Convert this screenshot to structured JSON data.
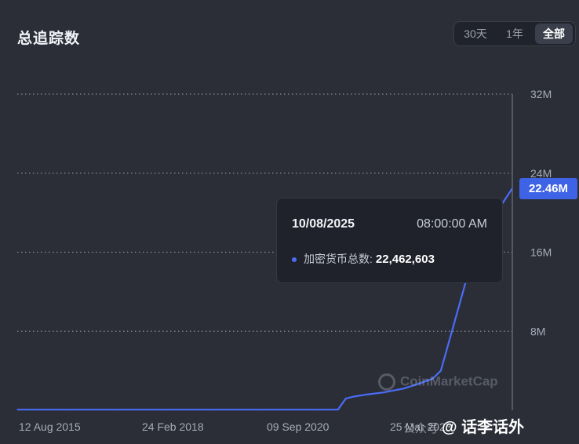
{
  "header": {
    "title": "总追踪数",
    "ranges": [
      "30天",
      "1年",
      "全部"
    ],
    "active_range": "全部"
  },
  "tooltip": {
    "date": "10/08/2025",
    "time": "08:00:00 AM",
    "series_label": "加密货币总数:",
    "value": "22,462,603"
  },
  "current_value_tag": "22.46M",
  "watermark": "CoinMarketCap",
  "credit": {
    "prefix": "公众号",
    "name": "@ 话李话外"
  },
  "colors": {
    "line": "#4a6cf7",
    "tag": "#3f63e6",
    "background": "#2b2e37"
  },
  "chart_data": {
    "type": "line",
    "title": "总追踪数",
    "x_tick_labels": [
      "12 Aug 2015",
      "24 Feb 2018",
      "09 Sep 2020",
      "25 Mar 2023"
    ],
    "y_tick_labels": [
      "8M",
      "16M",
      "24M",
      "32M"
    ],
    "y_ticks": [
      8000000,
      16000000,
      24000000,
      32000000
    ],
    "ylim": [
      0,
      32000000
    ],
    "xlim": [
      "2015-08-12",
      "2025-08-10"
    ],
    "grid": true,
    "series": [
      {
        "x": [
          "2015-08-12",
          "2016-08-01",
          "2017-08-01",
          "2018-08-01",
          "2019-08-01",
          "2020-08-01",
          "2021-08-01",
          "2022-02-01",
          "2022-04-01",
          "2022-06-01",
          "2022-09-01",
          "2023-01-01",
          "2023-06-01",
          "2023-09-01",
          "2024-01-01",
          "2024-03-01",
          "2024-05-01",
          "2024-08-01",
          "2024-10-01",
          "2024-12-01",
          "2025-02-01",
          "2025-04-01",
          "2025-06-01",
          "2025-08-10"
        ],
        "values": [
          60000,
          60000,
          60000,
          60000,
          60000,
          60000,
          60000,
          60000,
          1200000,
          1400000,
          1600000,
          1800000,
          2200000,
          2600000,
          3200000,
          4000000,
          7000000,
          11500000,
          14500000,
          16500000,
          18500000,
          19500000,
          21000000,
          22462603
        ]
      }
    ]
  }
}
